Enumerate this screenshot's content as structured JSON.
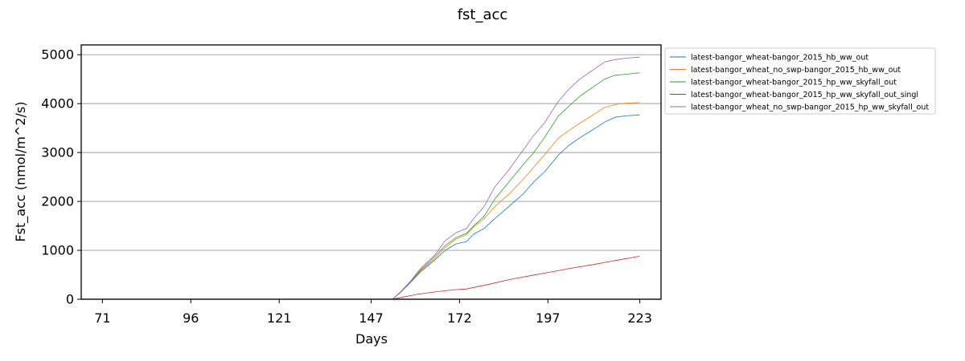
{
  "chart_data": {
    "type": "line",
    "title": "fst_acc",
    "xlabel": "Days",
    "ylabel": "Fst_acc (nmol/m^2/s)",
    "xlim": [
      65,
      229
    ],
    "ylim": [
      0,
      5200
    ],
    "x_ticks": [
      71,
      96,
      121,
      147,
      172,
      197,
      223
    ],
    "y_ticks": [
      0,
      1000,
      2000,
      3000,
      4000,
      5000
    ],
    "grid": "horizontal",
    "legend_position": "outside-top-right",
    "series": [
      {
        "name": "latest-bangor_wheat-bangor_2015_hb_ww_out",
        "color": "#1f77b4",
        "points": [
          [
            71,
            0
          ],
          [
            153,
            0
          ],
          [
            155,
            120
          ],
          [
            158,
            330
          ],
          [
            161,
            560
          ],
          [
            165,
            800
          ],
          [
            168,
            1000
          ],
          [
            171,
            1130
          ],
          [
            174,
            1180
          ],
          [
            176,
            1330
          ],
          [
            179,
            1450
          ],
          [
            182,
            1650
          ],
          [
            186,
            1900
          ],
          [
            190,
            2150
          ],
          [
            193,
            2400
          ],
          [
            196,
            2600
          ],
          [
            200,
            2950
          ],
          [
            203,
            3150
          ],
          [
            206,
            3300
          ],
          [
            210,
            3480
          ],
          [
            213,
            3620
          ],
          [
            216,
            3720
          ],
          [
            219,
            3750
          ],
          [
            223,
            3770
          ]
        ]
      },
      {
        "name": "latest-bangor_wheat_no_swp-bangor_2015_hb_ww_out",
        "color": "#ff7f0e",
        "points": [
          [
            71,
            0
          ],
          [
            153,
            0
          ],
          [
            155,
            120
          ],
          [
            158,
            340
          ],
          [
            161,
            580
          ],
          [
            165,
            830
          ],
          [
            168,
            1060
          ],
          [
            171,
            1230
          ],
          [
            174,
            1320
          ],
          [
            176,
            1480
          ],
          [
            179,
            1650
          ],
          [
            182,
            1900
          ],
          [
            186,
            2150
          ],
          [
            190,
            2450
          ],
          [
            193,
            2700
          ],
          [
            196,
            2950
          ],
          [
            200,
            3300
          ],
          [
            203,
            3450
          ],
          [
            206,
            3600
          ],
          [
            210,
            3780
          ],
          [
            213,
            3920
          ],
          [
            216,
            3980
          ],
          [
            219,
            4010
          ],
          [
            223,
            4020
          ]
        ]
      },
      {
        "name": "latest-bangor_wheat-bangor_2015_hp_ww_skyfall_out",
        "color": "#2ca02c",
        "points": [
          [
            71,
            0
          ],
          [
            153,
            0
          ],
          [
            155,
            120
          ],
          [
            158,
            350
          ],
          [
            161,
            600
          ],
          [
            165,
            870
          ],
          [
            168,
            1100
          ],
          [
            171,
            1260
          ],
          [
            174,
            1350
          ],
          [
            176,
            1500
          ],
          [
            179,
            1700
          ],
          [
            182,
            2050
          ],
          [
            186,
            2400
          ],
          [
            190,
            2750
          ],
          [
            193,
            3000
          ],
          [
            196,
            3300
          ],
          [
            200,
            3750
          ],
          [
            203,
            3950
          ],
          [
            206,
            4150
          ],
          [
            210,
            4350
          ],
          [
            213,
            4500
          ],
          [
            216,
            4580
          ],
          [
            219,
            4600
          ],
          [
            223,
            4630
          ]
        ]
      },
      {
        "name": "latest-bangor_wheat-bangor_2015_hp_ww_skyfall_out_singl",
        "color": "#d62728",
        "points": [
          [
            71,
            0
          ],
          [
            153,
            0
          ],
          [
            155,
            30
          ],
          [
            160,
            100
          ],
          [
            165,
            150
          ],
          [
            170,
            190
          ],
          [
            174,
            210
          ],
          [
            180,
            300
          ],
          [
            186,
            400
          ],
          [
            192,
            480
          ],
          [
            198,
            560
          ],
          [
            204,
            640
          ],
          [
            210,
            710
          ],
          [
            216,
            790
          ],
          [
            223,
            880
          ]
        ]
      },
      {
        "name": "latest-bangor_wheat_no_swp-bangor_2015_hp_ww_skyfall_out",
        "color": "#9467bd",
        "points": [
          [
            71,
            0
          ],
          [
            153,
            0
          ],
          [
            155,
            130
          ],
          [
            158,
            360
          ],
          [
            161,
            630
          ],
          [
            165,
            900
          ],
          [
            168,
            1200
          ],
          [
            171,
            1360
          ],
          [
            174,
            1450
          ],
          [
            176,
            1650
          ],
          [
            179,
            1900
          ],
          [
            182,
            2300
          ],
          [
            186,
            2650
          ],
          [
            190,
            3050
          ],
          [
            193,
            3350
          ],
          [
            196,
            3600
          ],
          [
            200,
            4050
          ],
          [
            203,
            4300
          ],
          [
            206,
            4500
          ],
          [
            210,
            4700
          ],
          [
            213,
            4850
          ],
          [
            216,
            4900
          ],
          [
            219,
            4930
          ],
          [
            223,
            4950
          ]
        ]
      }
    ]
  }
}
